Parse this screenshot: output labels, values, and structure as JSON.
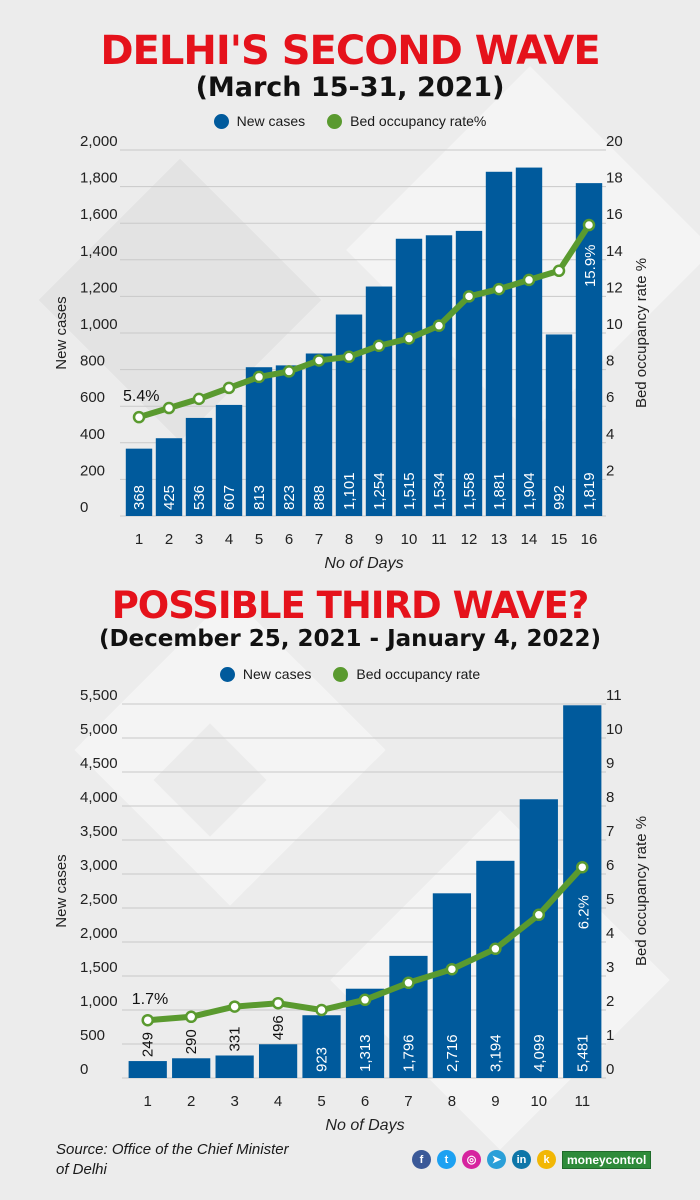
{
  "brand": "moneycontrol",
  "source": "Source: Office of the Chief Minister of Delhi",
  "colors": {
    "bar": "#005a9c",
    "line": "#5a9a2f",
    "title": "#e5121b",
    "grid": "#c9c9c9"
  },
  "social_icons": [
    "facebook-icon",
    "twitter-icon",
    "instagram-icon",
    "telegram-icon",
    "linkedin-icon",
    "koo-icon"
  ],
  "chart_data": [
    {
      "type": "bar",
      "title": "DELHI'S SECOND WAVE",
      "subtitle": "(March 15-31, 2021)",
      "legend": [
        "New cases",
        "Bed occupancy rate%"
      ],
      "xlabel": "No of  Days",
      "ylabel": "New cases",
      "y2label": "Bed occupancy rate %",
      "categories": [
        "1",
        "2",
        "3",
        "4",
        "5",
        "6",
        "7",
        "8",
        "9",
        "10",
        "11",
        "12",
        "13",
        "14",
        "15",
        "16"
      ],
      "ylim": [
        0,
        2000
      ],
      "yticks": [
        "0",
        "200",
        "400",
        "600",
        "800",
        "1,000",
        "1,200",
        "1,400",
        "1,600",
        "1,800",
        "2,000"
      ],
      "y2lim": [
        0,
        20
      ],
      "y2ticks": [
        "",
        "2",
        "4",
        "6",
        "8",
        "10",
        "12",
        "14",
        "16",
        "18",
        "20"
      ],
      "series": [
        {
          "name": "New cases",
          "type": "bar",
          "values": [
            368,
            425,
            536,
            607,
            813,
            823,
            888,
            1101,
            1254,
            1515,
            1534,
            1558,
            1881,
            1904,
            992,
            1819
          ],
          "labels": [
            "368",
            "425",
            "536",
            "607",
            "813",
            "823",
            "888",
            "1,101",
            "1,254",
            "1,515",
            "1,534",
            "1,558",
            "1,881",
            "1,904",
            "992",
            "1,819"
          ]
        },
        {
          "name": "Bed occupancy rate%",
          "type": "line",
          "axis": "right",
          "values": [
            5.4,
            5.9,
            6.4,
            7.0,
            7.6,
            7.9,
            8.5,
            8.7,
            9.3,
            9.7,
            10.4,
            12.0,
            12.4,
            12.9,
            13.4,
            15.9
          ]
        }
      ],
      "annotations": [
        {
          "index": 0,
          "text": "5.4%"
        },
        {
          "index": 15,
          "text": "15.9%"
        }
      ]
    },
    {
      "type": "bar",
      "title": "POSSIBLE THIRD WAVE?",
      "subtitle": "(December 25, 2021 - January 4, 2022)",
      "legend": [
        "New cases",
        "Bed occupancy rate"
      ],
      "xlabel": "No of  Days",
      "ylabel": "New cases",
      "y2label": "Bed occupancy rate %",
      "categories": [
        "1",
        "2",
        "3",
        "4",
        "5",
        "6",
        "7",
        "8",
        "9",
        "10",
        "11"
      ],
      "ylim": [
        0,
        5500
      ],
      "yticks": [
        "0",
        "500",
        "1,000",
        "1,500",
        "2,000",
        "2,500",
        "3,000",
        "3,500",
        "4,000",
        "4,500",
        "5,000",
        "5,500"
      ],
      "y2lim": [
        0,
        11
      ],
      "y2ticks": [
        "0",
        "1",
        "2",
        "3",
        "4",
        "5",
        "6",
        "7",
        "8",
        "9",
        "10",
        "11"
      ],
      "series": [
        {
          "name": "New cases",
          "type": "bar",
          "values": [
            249,
            290,
            331,
            496,
            923,
            1313,
            1796,
            2716,
            3194,
            4099,
            5481
          ],
          "labels": [
            "249",
            "290",
            "331",
            "496",
            "923",
            "1,313",
            "1,796",
            "2,716",
            "3,194",
            "4,099",
            "5,481"
          ]
        },
        {
          "name": "Bed occupancy rate",
          "type": "line",
          "axis": "right",
          "values": [
            1.7,
            1.8,
            2.1,
            2.2,
            2.0,
            2.3,
            2.8,
            3.2,
            3.8,
            4.8,
            6.2
          ]
        }
      ],
      "annotations": [
        {
          "index": 0,
          "text": "1.7%"
        },
        {
          "index": 10,
          "text": "6.2%"
        }
      ]
    }
  ]
}
